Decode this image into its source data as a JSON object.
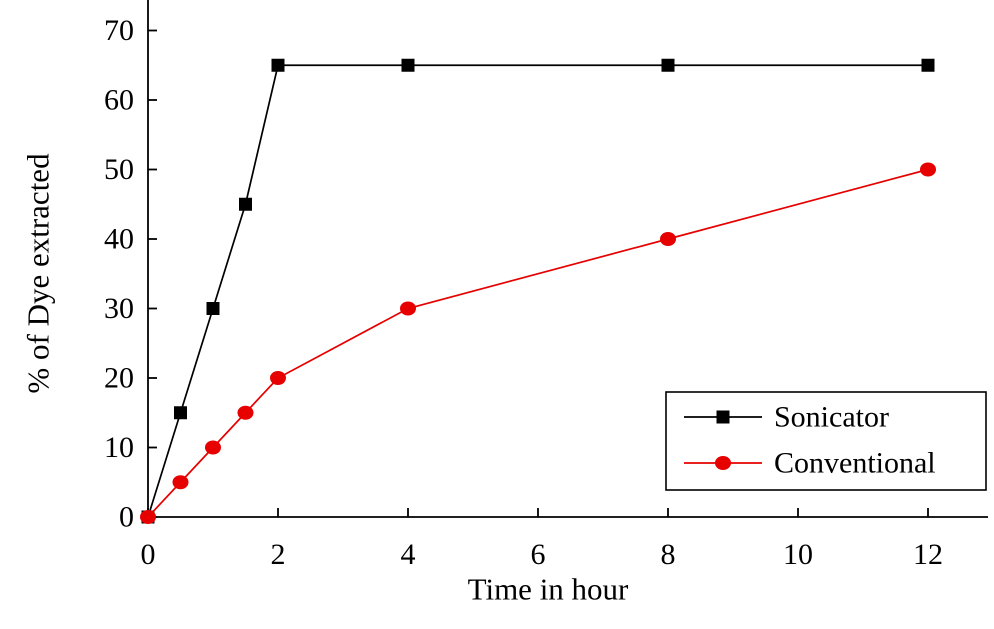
{
  "chart_data": {
    "type": "line",
    "x": [
      0,
      0.5,
      1,
      1.5,
      2,
      4,
      8,
      12
    ],
    "series": [
      {
        "name": "Sonicator",
        "color": "#000000",
        "marker": "square",
        "values": [
          0,
          15,
          30,
          45,
          65,
          65,
          65,
          65
        ]
      },
      {
        "name": "Conventional",
        "color": "#e60000",
        "marker": "circle",
        "values": [
          0,
          5,
          10,
          15,
          20,
          30,
          40,
          50
        ]
      }
    ],
    "xlabel": "Time in hour",
    "ylabel": "% of Dye extracted",
    "xticks": [
      0,
      2,
      4,
      6,
      8,
      10,
      12
    ],
    "yticks": [
      0,
      10,
      20,
      30,
      40,
      50,
      60,
      70
    ],
    "xlim": [
      0,
      12.9
    ],
    "ylim": [
      0,
      74
    ],
    "grid": false,
    "legend": {
      "position": "lower-right"
    }
  }
}
